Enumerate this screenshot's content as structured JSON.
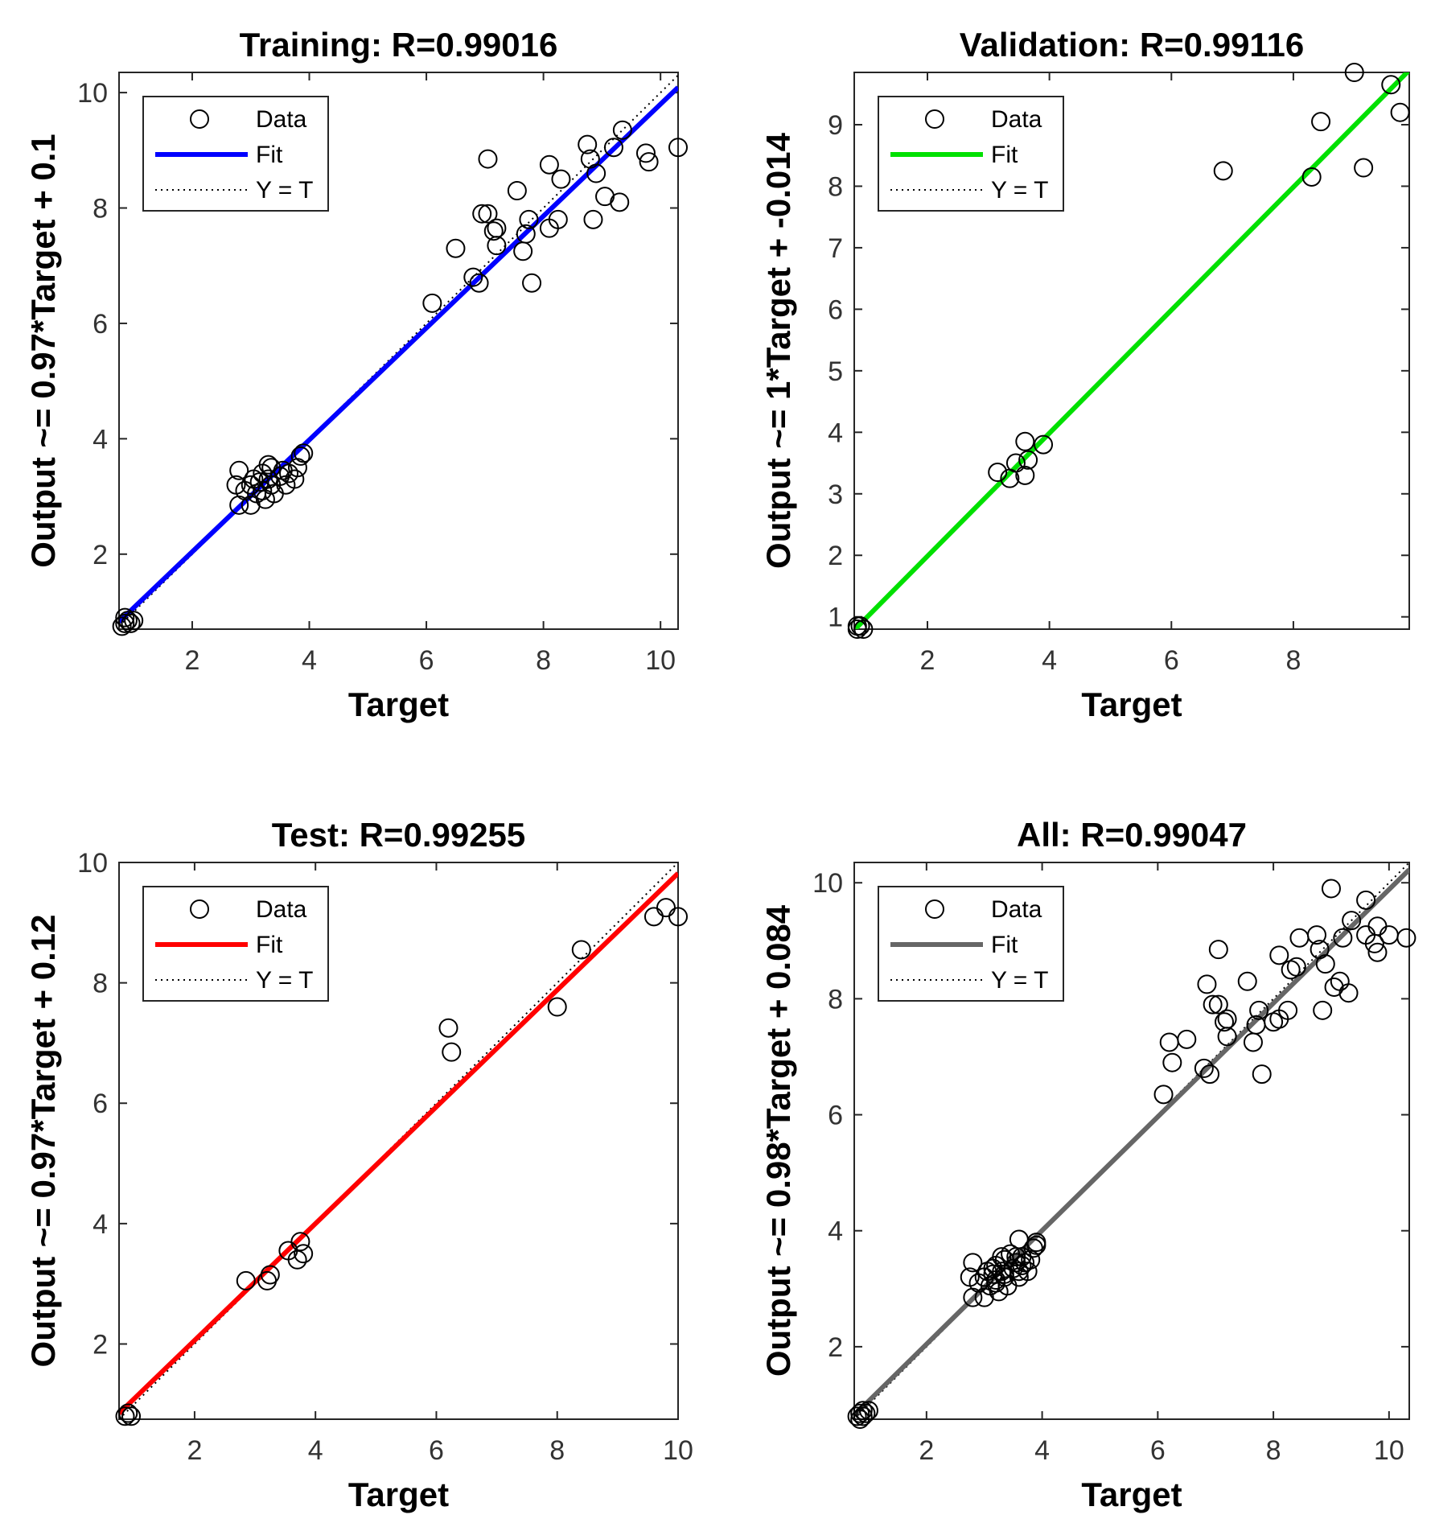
{
  "chart_data": [
    {
      "type": "scatter",
      "title": "Training: R=0.99016",
      "xlabel": "Target",
      "ylabel": "Output ~= 0.97*Target + 0.1",
      "xlim": [
        0.75,
        10.3
      ],
      "ylim": [
        0.7,
        10.35
      ],
      "xticks": [
        2,
        4,
        6,
        8,
        10
      ],
      "yticks": [
        2,
        4,
        6,
        8,
        10
      ],
      "fit": {
        "slope": 0.97,
        "intercept": 0.1,
        "color": "#0000ff"
      },
      "legend": {
        "location": "top-left",
        "entries": [
          "Data",
          "Fit",
          "Y = T"
        ]
      },
      "points": [
        [
          0.8,
          0.75
        ],
        [
          0.85,
          0.8
        ],
        [
          0.9,
          0.85
        ],
        [
          0.95,
          0.8
        ],
        [
          1.0,
          0.85
        ],
        [
          0.85,
          0.9
        ],
        [
          2.8,
          3.45
        ],
        [
          2.8,
          2.85
        ],
        [
          2.75,
          3.2
        ],
        [
          2.9,
          3.1
        ],
        [
          3.0,
          2.85
        ],
        [
          3.0,
          3.2
        ],
        [
          3.05,
          3.3
        ],
        [
          3.1,
          3.05
        ],
        [
          3.15,
          3.25
        ],
        [
          3.2,
          3.1
        ],
        [
          3.2,
          3.4
        ],
        [
          3.25,
          2.95
        ],
        [
          3.3,
          3.3
        ],
        [
          3.35,
          3.2
        ],
        [
          3.35,
          3.5
        ],
        [
          3.4,
          3.05
        ],
        [
          3.5,
          3.35
        ],
        [
          3.55,
          3.45
        ],
        [
          3.6,
          3.2
        ],
        [
          3.65,
          3.4
        ],
        [
          3.75,
          3.3
        ],
        [
          3.8,
          3.5
        ],
        [
          3.85,
          3.7
        ],
        [
          3.9,
          3.75
        ],
        [
          3.3,
          3.55
        ],
        [
          6.1,
          6.35
        ],
        [
          6.5,
          7.3
        ],
        [
          6.8,
          6.8
        ],
        [
          6.9,
          6.7
        ],
        [
          6.95,
          7.9
        ],
        [
          7.05,
          7.9
        ],
        [
          7.05,
          8.85
        ],
        [
          7.15,
          7.6
        ],
        [
          7.2,
          7.35
        ],
        [
          7.2,
          7.65
        ],
        [
          7.55,
          8.3
        ],
        [
          7.65,
          7.25
        ],
        [
          7.7,
          7.55
        ],
        [
          7.75,
          7.8
        ],
        [
          7.8,
          6.7
        ],
        [
          8.1,
          7.65
        ],
        [
          8.1,
          8.75
        ],
        [
          8.25,
          7.8
        ],
        [
          8.3,
          8.5
        ],
        [
          8.75,
          9.1
        ],
        [
          8.8,
          8.85
        ],
        [
          8.85,
          7.8
        ],
        [
          8.9,
          8.6
        ],
        [
          9.05,
          8.2
        ],
        [
          9.2,
          9.05
        ],
        [
          9.3,
          8.1
        ],
        [
          9.35,
          9.35
        ],
        [
          9.75,
          8.95
        ],
        [
          9.8,
          8.8
        ],
        [
          10.3,
          9.05
        ]
      ]
    },
    {
      "type": "scatter",
      "title": "Validation: R=0.99116",
      "xlabel": "Target",
      "ylabel": "Output ~= 1*Target + -0.014",
      "xlim": [
        0.8,
        9.9
      ],
      "ylim": [
        0.8,
        9.85
      ],
      "xticks": [
        2,
        4,
        6,
        8
      ],
      "yticks": [
        1,
        2,
        3,
        4,
        5,
        6,
        7,
        8,
        9
      ],
      "fit": {
        "slope": 1.0,
        "intercept": -0.014,
        "color": "#00e000"
      },
      "legend": {
        "location": "top-left",
        "entries": [
          "Data",
          "Fit",
          "Y = T"
        ]
      },
      "points": [
        [
          0.85,
          0.8
        ],
        [
          0.9,
          0.85
        ],
        [
          0.95,
          0.8
        ],
        [
          0.85,
          0.85
        ],
        [
          3.15,
          3.35
        ],
        [
          3.35,
          3.25
        ],
        [
          3.45,
          3.5
        ],
        [
          3.6,
          3.3
        ],
        [
          3.6,
          3.85
        ],
        [
          3.65,
          3.55
        ],
        [
          3.9,
          3.8
        ],
        [
          6.85,
          8.25
        ],
        [
          8.3,
          8.15
        ],
        [
          8.45,
          9.05
        ],
        [
          9.0,
          9.85
        ],
        [
          9.15,
          8.3
        ],
        [
          9.6,
          9.65
        ],
        [
          9.75,
          9.2
        ]
      ]
    },
    {
      "type": "scatter",
      "title": "Test: R=0.99255",
      "xlabel": "Target",
      "ylabel": "Output ~= 0.97*Target + 0.12",
      "xlim": [
        0.75,
        10.0
      ],
      "ylim": [
        0.75,
        10.0
      ],
      "xticks": [
        2,
        4,
        6,
        8,
        10
      ],
      "yticks": [
        2,
        4,
        6,
        8,
        10
      ],
      "fit": {
        "slope": 0.97,
        "intercept": 0.12,
        "color": "#ff0000"
      },
      "legend": {
        "location": "top-left",
        "entries": [
          "Data",
          "Fit",
          "Y = T"
        ]
      },
      "points": [
        [
          0.85,
          0.8
        ],
        [
          0.9,
          0.85
        ],
        [
          0.95,
          0.8
        ],
        [
          2.85,
          3.05
        ],
        [
          3.2,
          3.05
        ],
        [
          3.25,
          3.15
        ],
        [
          3.55,
          3.55
        ],
        [
          3.7,
          3.4
        ],
        [
          3.75,
          3.7
        ],
        [
          3.8,
          3.5
        ],
        [
          6.2,
          7.25
        ],
        [
          6.25,
          6.85
        ],
        [
          8.0,
          7.6
        ],
        [
          8.4,
          8.55
        ],
        [
          9.6,
          9.1
        ],
        [
          9.8,
          9.25
        ],
        [
          10.0,
          9.1
        ]
      ]
    },
    {
      "type": "scatter",
      "title": "All: R=0.99047",
      "xlabel": "Target",
      "ylabel": "Output ~= 0.98*Target + 0.084",
      "xlim": [
        0.75,
        10.35
      ],
      "ylim": [
        0.75,
        10.35
      ],
      "xticks": [
        2,
        4,
        6,
        8,
        10
      ],
      "yticks": [
        2,
        4,
        6,
        8,
        10
      ],
      "fit": {
        "slope": 0.98,
        "intercept": 0.084,
        "color": "#666666"
      },
      "legend": {
        "location": "top-left",
        "entries": [
          "Data",
          "Fit",
          "Y = T"
        ]
      },
      "points": [
        [
          0.8,
          0.8
        ],
        [
          0.85,
          0.85
        ],
        [
          0.9,
          0.8
        ],
        [
          0.95,
          0.85
        ],
        [
          1.0,
          0.9
        ],
        [
          0.85,
          0.75
        ],
        [
          0.9,
          0.9
        ],
        [
          2.8,
          3.45
        ],
        [
          2.8,
          2.85
        ],
        [
          2.75,
          3.2
        ],
        [
          2.9,
          3.1
        ],
        [
          3.0,
          2.85
        ],
        [
          3.0,
          3.2
        ],
        [
          3.05,
          3.3
        ],
        [
          3.1,
          3.05
        ],
        [
          3.15,
          3.25
        ],
        [
          3.2,
          3.1
        ],
        [
          3.2,
          3.4
        ],
        [
          3.25,
          2.95
        ],
        [
          3.3,
          3.3
        ],
        [
          3.35,
          3.2
        ],
        [
          3.35,
          3.5
        ],
        [
          3.4,
          3.05
        ],
        [
          3.5,
          3.35
        ],
        [
          3.55,
          3.45
        ],
        [
          3.6,
          3.2
        ],
        [
          3.65,
          3.4
        ],
        [
          3.75,
          3.3
        ],
        [
          3.8,
          3.5
        ],
        [
          3.85,
          3.7
        ],
        [
          3.9,
          3.75
        ],
        [
          3.3,
          3.55
        ],
        [
          3.15,
          3.35
        ],
        [
          3.35,
          3.25
        ],
        [
          3.45,
          3.6
        ],
        [
          3.6,
          3.3
        ],
        [
          3.6,
          3.85
        ],
        [
          3.65,
          3.55
        ],
        [
          3.9,
          3.8
        ],
        [
          3.2,
          3.15
        ],
        [
          3.55,
          3.55
        ],
        [
          3.7,
          3.45
        ],
        [
          6.1,
          6.35
        ],
        [
          6.2,
          7.25
        ],
        [
          6.25,
          6.9
        ],
        [
          6.5,
          7.3
        ],
        [
          6.8,
          6.8
        ],
        [
          6.85,
          8.25
        ],
        [
          6.9,
          6.7
        ],
        [
          6.95,
          7.9
        ],
        [
          7.05,
          7.9
        ],
        [
          7.05,
          8.85
        ],
        [
          7.15,
          7.6
        ],
        [
          7.2,
          7.35
        ],
        [
          7.2,
          7.65
        ],
        [
          7.55,
          8.3
        ],
        [
          7.65,
          7.25
        ],
        [
          7.7,
          7.55
        ],
        [
          7.75,
          7.8
        ],
        [
          7.8,
          6.7
        ],
        [
          8.0,
          7.6
        ],
        [
          8.1,
          7.65
        ],
        [
          8.1,
          8.75
        ],
        [
          8.25,
          7.8
        ],
        [
          8.3,
          8.5
        ],
        [
          8.4,
          8.55
        ],
        [
          8.45,
          9.05
        ],
        [
          8.75,
          9.1
        ],
        [
          8.8,
          8.85
        ],
        [
          8.85,
          7.8
        ],
        [
          8.9,
          8.6
        ],
        [
          9.0,
          9.9
        ],
        [
          9.05,
          8.2
        ],
        [
          9.15,
          8.3
        ],
        [
          9.2,
          9.05
        ],
        [
          9.3,
          8.1
        ],
        [
          9.35,
          9.35
        ],
        [
          9.6,
          9.1
        ],
        [
          9.6,
          9.7
        ],
        [
          9.75,
          8.95
        ],
        [
          9.8,
          8.8
        ],
        [
          9.8,
          9.25
        ],
        [
          10.0,
          9.1
        ],
        [
          10.3,
          9.05
        ]
      ]
    }
  ]
}
